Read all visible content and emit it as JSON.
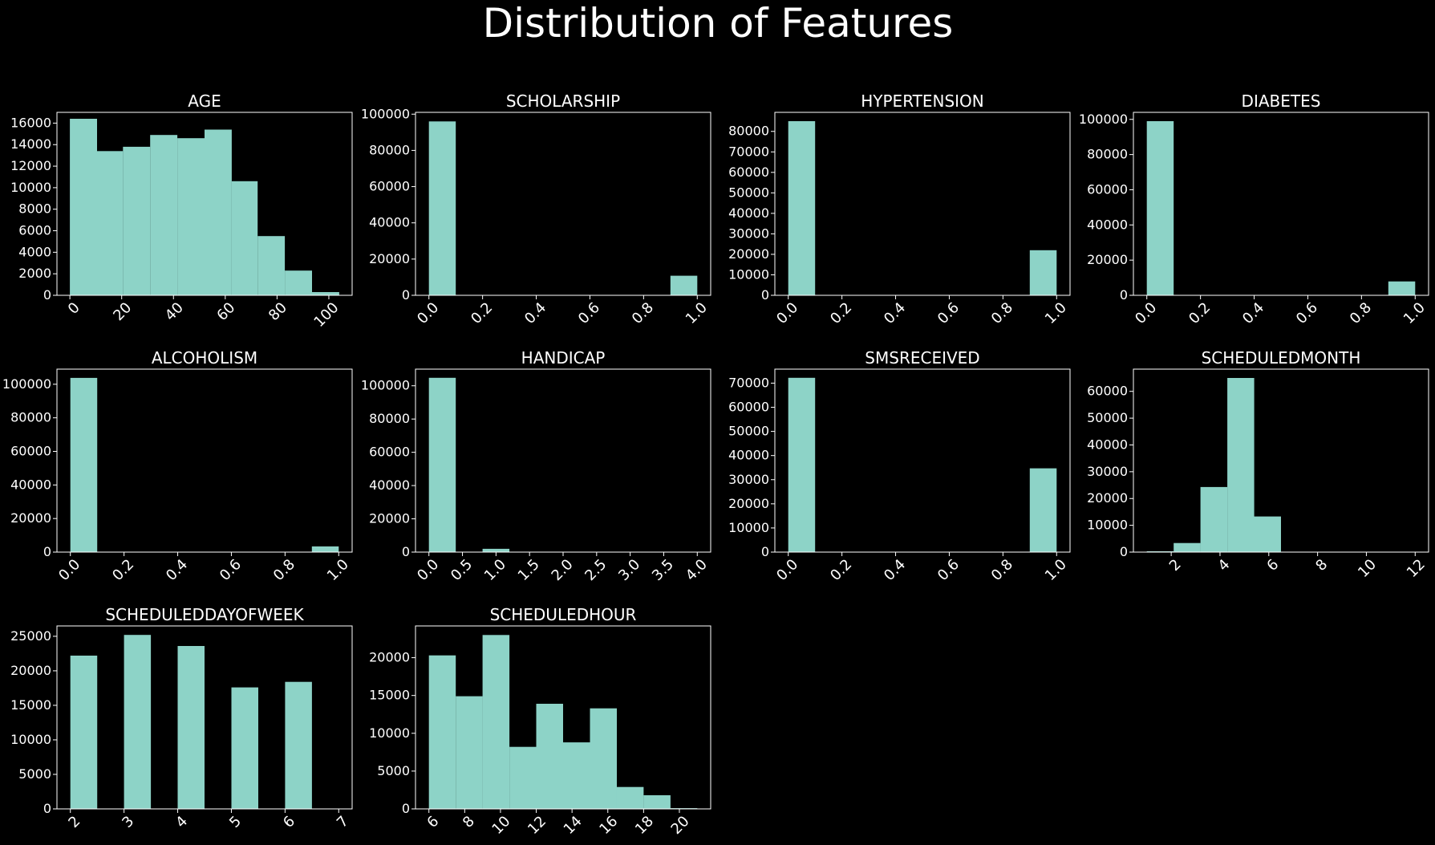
{
  "figure": {
    "title": "Distribution of Features"
  },
  "colors": {
    "background": "#000000",
    "bar": "#8dd3c7",
    "text": "#ffffff"
  },
  "chart_data": [
    {
      "type": "bar",
      "title": "AGE",
      "bins": [
        [
          0,
          10.5,
          16400
        ],
        [
          10.5,
          20.5,
          13400
        ],
        [
          20.5,
          31,
          13800
        ],
        [
          31,
          41.5,
          14900
        ],
        [
          41.5,
          52,
          14600
        ],
        [
          52,
          62.5,
          15400
        ],
        [
          62.5,
          72.5,
          10600
        ],
        [
          72.5,
          83,
          5500
        ],
        [
          83,
          93.5,
          2300
        ],
        [
          93.5,
          104,
          300
        ]
      ],
      "xlim": [
        -5,
        109
      ],
      "ylim": [
        0,
        17000
      ],
      "xticks": [
        0,
        20,
        40,
        60,
        80,
        100
      ],
      "xtick_labels": [
        "0",
        "20",
        "40",
        "60",
        "80",
        "100"
      ],
      "yticks": [
        0,
        2000,
        4000,
        6000,
        8000,
        10000,
        12000,
        14000,
        16000
      ],
      "ytick_labels": [
        "0",
        "2000",
        "4000",
        "6000",
        "8000",
        "10000",
        "12000",
        "14000",
        "16000"
      ]
    },
    {
      "type": "bar",
      "title": "SCHOLARSHIP",
      "bins": [
        [
          0,
          0.1,
          96000
        ],
        [
          0.9,
          1.0,
          10800
        ]
      ],
      "xlim": [
        -0.05,
        1.05
      ],
      "ylim": [
        0,
        101000
      ],
      "xticks": [
        0,
        0.2,
        0.4,
        0.6,
        0.8,
        1.0
      ],
      "xtick_labels": [
        "0.0",
        "0.2",
        "0.4",
        "0.6",
        "0.8",
        "1.0"
      ],
      "yticks": [
        0,
        20000,
        40000,
        60000,
        80000,
        100000
      ],
      "ytick_labels": [
        "0",
        "20000",
        "40000",
        "60000",
        "80000",
        "100000"
      ]
    },
    {
      "type": "bar",
      "title": "HYPERTENSION",
      "bins": [
        [
          0,
          0.1,
          85000
        ],
        [
          0.9,
          1.0,
          22000
        ]
      ],
      "xlim": [
        -0.05,
        1.05
      ],
      "ylim": [
        0,
        89300
      ],
      "xticks": [
        0,
        0.2,
        0.4,
        0.6,
        0.8,
        1.0
      ],
      "xtick_labels": [
        "0.0",
        "0.2",
        "0.4",
        "0.6",
        "0.8",
        "1.0"
      ],
      "yticks": [
        0,
        10000,
        20000,
        30000,
        40000,
        50000,
        60000,
        70000,
        80000
      ],
      "ytick_labels": [
        "0",
        "10000",
        "20000",
        "30000",
        "40000",
        "50000",
        "60000",
        "70000",
        "80000"
      ]
    },
    {
      "type": "bar",
      "title": "DIABETES",
      "bins": [
        [
          0,
          0.1,
          99000
        ],
        [
          0.9,
          1.0,
          7900
        ]
      ],
      "xlim": [
        -0.05,
        1.05
      ],
      "ylim": [
        0,
        104000
      ],
      "xticks": [
        0,
        0.2,
        0.4,
        0.6,
        0.8,
        1.0
      ],
      "xtick_labels": [
        "0.0",
        "0.2",
        "0.4",
        "0.6",
        "0.8",
        "1.0"
      ],
      "yticks": [
        0,
        20000,
        40000,
        60000,
        80000,
        100000
      ],
      "ytick_labels": [
        "0",
        "20000",
        "40000",
        "60000",
        "80000",
        "100000"
      ]
    },
    {
      "type": "bar",
      "title": "ALCOHOLISM",
      "bins": [
        [
          0,
          0.1,
          103800
        ],
        [
          0.9,
          1.0,
          3400
        ]
      ],
      "xlim": [
        -0.05,
        1.05
      ],
      "ylim": [
        0,
        109000
      ],
      "xticks": [
        0,
        0.2,
        0.4,
        0.6,
        0.8,
        1.0
      ],
      "xtick_labels": [
        "0.0",
        "0.2",
        "0.4",
        "0.6",
        "0.8",
        "1.0"
      ],
      "yticks": [
        0,
        20000,
        40000,
        60000,
        80000,
        100000
      ],
      "ytick_labels": [
        "0",
        "20000",
        "40000",
        "60000",
        "80000",
        "100000"
      ]
    },
    {
      "type": "bar",
      "title": "HANDICAP",
      "bins": [
        [
          0,
          0.4,
          104800
        ],
        [
          0.8,
          1.2,
          2000
        ]
      ],
      "xlim": [
        -0.2,
        4.2
      ],
      "ylim": [
        0,
        110000
      ],
      "xticks": [
        0,
        0.5,
        1.0,
        1.5,
        2.0,
        2.5,
        3.0,
        3.5,
        4.0
      ],
      "xtick_labels": [
        "0.0",
        "0.5",
        "1.0",
        "1.5",
        "2.0",
        "2.5",
        "3.0",
        "3.5",
        "4.0"
      ],
      "yticks": [
        0,
        20000,
        40000,
        60000,
        80000,
        100000
      ],
      "ytick_labels": [
        "0",
        "20000",
        "40000",
        "60000",
        "80000",
        "100000"
      ]
    },
    {
      "type": "bar",
      "title": "SMSRECEIVED",
      "bins": [
        [
          0,
          0.1,
          72200
        ],
        [
          0.9,
          1.0,
          34700
        ]
      ],
      "xlim": [
        -0.05,
        1.05
      ],
      "ylim": [
        0,
        75800
      ],
      "xticks": [
        0,
        0.2,
        0.4,
        0.6,
        0.8,
        1.0
      ],
      "xtick_labels": [
        "0.0",
        "0.2",
        "0.4",
        "0.6",
        "0.8",
        "1.0"
      ],
      "yticks": [
        0,
        10000,
        20000,
        30000,
        40000,
        50000,
        60000,
        70000
      ],
      "ytick_labels": [
        "0",
        "10000",
        "20000",
        "30000",
        "40000",
        "50000",
        "60000",
        "70000"
      ]
    },
    {
      "type": "bar",
      "title": "SCHEDULEDMONTH",
      "bins": [
        [
          1,
          2.1,
          300
        ],
        [
          2.1,
          3.2,
          3400
        ],
        [
          3.2,
          4.3,
          24300
        ],
        [
          4.3,
          5.4,
          65000
        ],
        [
          5.4,
          6.5,
          13300
        ]
      ],
      "xlim": [
        0.45,
        12.55
      ],
      "ylim": [
        0,
        68300
      ],
      "xticks": [
        2,
        4,
        6,
        8,
        10,
        12
      ],
      "xtick_labels": [
        "2",
        "4",
        "6",
        "8",
        "10",
        "12"
      ],
      "yticks": [
        0,
        10000,
        20000,
        30000,
        40000,
        50000,
        60000
      ],
      "ytick_labels": [
        "0",
        "10000",
        "20000",
        "30000",
        "40000",
        "50000",
        "60000"
      ]
    },
    {
      "type": "bar",
      "title": "SCHEDULEDDAYOFWEEK",
      "bins": [
        [
          2,
          2.5,
          22200
        ],
        [
          3,
          3.5,
          25200
        ],
        [
          4,
          4.5,
          23600
        ],
        [
          5,
          5.5,
          17600
        ],
        [
          6,
          6.5,
          18400
        ]
      ],
      "xlim": [
        1.75,
        7.25
      ],
      "ylim": [
        0,
        26500
      ],
      "xticks": [
        2,
        3,
        4,
        5,
        6,
        7
      ],
      "xtick_labels": [
        "2",
        "3",
        "4",
        "5",
        "6",
        "7"
      ],
      "yticks": [
        0,
        5000,
        10000,
        15000,
        20000,
        25000
      ],
      "ytick_labels": [
        "0",
        "5000",
        "10000",
        "15000",
        "20000",
        "25000"
      ]
    },
    {
      "type": "bar",
      "title": "SCHEDULEDHOUR",
      "bins": [
        [
          6,
          7.5,
          20300
        ],
        [
          7.5,
          9,
          14900
        ],
        [
          9,
          10.5,
          23000
        ],
        [
          10.5,
          12,
          8200
        ],
        [
          12,
          13.5,
          13900
        ],
        [
          13.5,
          15,
          8800
        ],
        [
          15,
          16.5,
          13300
        ],
        [
          16.5,
          18,
          2900
        ],
        [
          18,
          19.5,
          1800
        ],
        [
          19.5,
          21,
          100
        ]
      ],
      "xlim": [
        5.25,
        21.75
      ],
      "ylim": [
        0,
        24200
      ],
      "xticks": [
        6,
        8,
        10,
        12,
        14,
        16,
        18,
        20
      ],
      "xtick_labels": [
        "6",
        "8",
        "10",
        "12",
        "14",
        "16",
        "18",
        "20"
      ],
      "yticks": [
        0,
        5000,
        10000,
        15000,
        20000
      ],
      "ytick_labels": [
        "0",
        "5000",
        "10000",
        "15000",
        "20000"
      ]
    }
  ]
}
